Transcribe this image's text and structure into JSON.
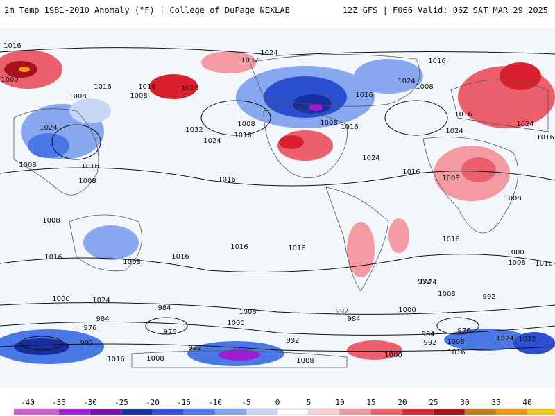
{
  "header": {
    "title_left": "2m Temp 1981-2010 Anomaly (°F) | College of DuPage NEXLAB",
    "title_right": "12Z GFS | F066 Valid: 06Z SAT MAR 29 2025"
  },
  "colorbar": {
    "ticks": [
      "-40",
      "-35",
      "-30",
      "-25",
      "-20",
      "-15",
      "-10",
      "-5",
      "0",
      "5",
      "10",
      "15",
      "20",
      "25",
      "30",
      "35",
      "40"
    ],
    "colors": [
      "#d35bd3",
      "#a11ad4",
      "#7a0aaa",
      "#1a2d9e",
      "#2a4fd0",
      "#4a78e6",
      "#87a7ee",
      "#c7d8f6",
      "#ffffff",
      "#fbd2d6",
      "#f49aa3",
      "#ec5f6c",
      "#d9202e",
      "#a8101c",
      "#c27d1a",
      "#f09a16",
      "#f7c812"
    ]
  },
  "map": {
    "isobar_labels": [
      "1016",
      "1016",
      "1008",
      "1016",
      "1008",
      "1016",
      "1024",
      "1000",
      "1024",
      "1016",
      "1008",
      "1008",
      "1016",
      "1032",
      "1024",
      "1008",
      "1016",
      "1024",
      "1032",
      "1016",
      "1024",
      "1008",
      "1008",
      "1016",
      "1008",
      "1024",
      "1016",
      "1016",
      "1024",
      "1016",
      "1008",
      "1016",
      "1008",
      "1016",
      "1016",
      "1016",
      "1016",
      "1008",
      "1000",
      "1016",
      "992",
      "984",
      "1000",
      "976",
      "1024",
      "992",
      "1016",
      "1008",
      "984",
      "976",
      "992",
      "1008",
      "1000",
      "992",
      "984",
      "992",
      "1008",
      "1000",
      "1000",
      "1024",
      "992",
      "1008",
      "976",
      "984",
      "992",
      "1008",
      "1016",
      "1024",
      "1032",
      "1008",
      "1016"
    ]
  }
}
